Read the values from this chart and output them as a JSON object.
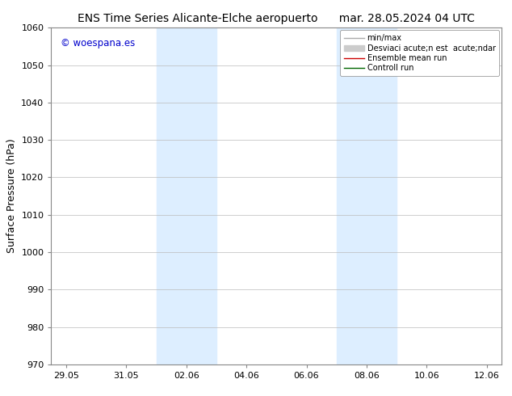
{
  "title_left": "ENS Time Series Alicante-Elche aeropuerto",
  "title_right": "mar. 28.05.2024 04 UTC",
  "ylabel": "Surface Pressure (hPa)",
  "ylim": [
    970,
    1060
  ],
  "yticks": [
    970,
    980,
    990,
    1000,
    1010,
    1020,
    1030,
    1040,
    1050,
    1060
  ],
  "xtick_labels": [
    "29.05",
    "31.05",
    "02.06",
    "04.06",
    "06.06",
    "08.06",
    "10.06",
    "12.06"
  ],
  "xtick_positions": [
    0,
    2,
    4,
    6,
    8,
    10,
    12,
    14
  ],
  "shaded_regions": [
    {
      "x_start": 3.0,
      "x_end": 5.0
    },
    {
      "x_start": 9.0,
      "x_end": 11.0
    }
  ],
  "shade_color": "#ddeeff",
  "watermark_text": "© woespana.es",
  "watermark_color": "#0000cc",
  "legend_labels": [
    "min/max",
    "Desviaci acute;n est  acute;ndar",
    "Ensemble mean run",
    "Controll run"
  ],
  "legend_colors": [
    "#aaaaaa",
    "#cccccc",
    "#cc0000",
    "#006600"
  ],
  "legend_lws": [
    1.0,
    5,
    1.0,
    1.0
  ],
  "bg_color": "#ffffff",
  "grid_color": "#bbbbbb",
  "title_fontsize": 10,
  "axis_label_fontsize": 9,
  "tick_fontsize": 8,
  "xlim": [
    -0.5,
    14.5
  ]
}
